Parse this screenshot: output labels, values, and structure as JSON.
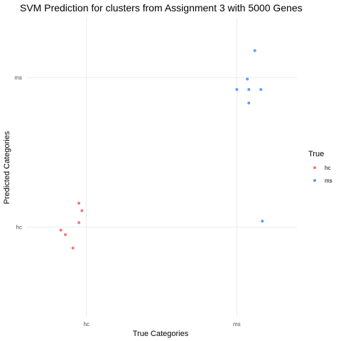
{
  "chart_data": {
    "type": "scatter",
    "title": "SVM Prediction for clusters from Assignment 3 with 5000 Genes",
    "xlabel": "True Categories",
    "ylabel": "Predicted Categories",
    "categories": [
      "hc",
      "ms"
    ],
    "x_categories": [
      "hc",
      "ms"
    ],
    "y_categories": [
      "hc",
      "ms"
    ],
    "jitter_note_removed": true,
    "grid": true,
    "legend": {
      "title": "True",
      "position": "right",
      "entries": [
        {
          "label": "hc",
          "color": "#F8766D"
        },
        {
          "label": "ms",
          "color": "#619CFF"
        }
      ]
    },
    "series": [
      {
        "name": "hc",
        "color": "#F8766D",
        "points": [
          {
            "x": 0.95,
            "y": 1.16
          },
          {
            "x": 0.97,
            "y": 1.11
          },
          {
            "x": 0.95,
            "y": 1.03
          },
          {
            "x": 0.83,
            "y": 0.98
          },
          {
            "x": 0.86,
            "y": 0.95
          },
          {
            "x": 0.91,
            "y": 0.86
          }
        ]
      },
      {
        "name": "ms",
        "color": "#619CFF",
        "points": [
          {
            "x": 2.12,
            "y": 2.18
          },
          {
            "x": 2.07,
            "y": 1.99
          },
          {
            "x": 2.0,
            "y": 1.92
          },
          {
            "x": 2.08,
            "y": 1.92
          },
          {
            "x": 2.16,
            "y": 1.92
          },
          {
            "x": 2.08,
            "y": 1.83
          },
          {
            "x": 2.17,
            "y": 1.04
          }
        ]
      }
    ],
    "xlim": [
      0.6,
      2.4
    ],
    "ylim": [
      0.4,
      2.4
    ]
  }
}
